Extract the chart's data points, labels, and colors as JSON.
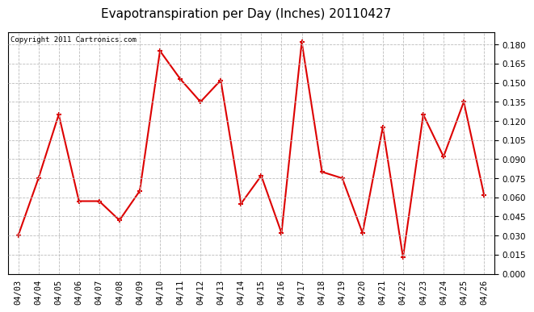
{
  "title": "Evapotranspiration per Day (Inches) 20110427",
  "copyright": "Copyright 2011 Cartronics.com",
  "dates": [
    "04/03",
    "04/04",
    "04/05",
    "04/06",
    "04/07",
    "04/08",
    "04/09",
    "04/10",
    "04/11",
    "04/12",
    "04/13",
    "04/14",
    "04/15",
    "04/16",
    "04/17",
    "04/18",
    "04/19",
    "04/20",
    "04/21",
    "04/22",
    "04/23",
    "04/24",
    "04/25",
    "04/26"
  ],
  "values": [
    0.03,
    0.075,
    0.125,
    0.057,
    0.057,
    0.042,
    0.065,
    0.175,
    0.153,
    0.135,
    0.152,
    0.055,
    0.077,
    0.032,
    0.182,
    0.08,
    0.075,
    0.032,
    0.115,
    0.013,
    0.125,
    0.092,
    0.135,
    0.062
  ],
  "line_color": "#dd0000",
  "marker": "+",
  "marker_size": 5,
  "linewidth": 1.5,
  "ylim": [
    0.0,
    0.19
  ],
  "yticks": [
    0.0,
    0.015,
    0.03,
    0.045,
    0.06,
    0.075,
    0.09,
    0.105,
    0.12,
    0.135,
    0.15,
    0.165,
    0.18
  ],
  "background_color": "#ffffff",
  "plot_bg_color": "#ffffff",
  "grid_color": "#bbbbbb",
  "grid_style": "--",
  "title_fontsize": 11,
  "copyright_fontsize": 6.5,
  "tick_fontsize": 7.5
}
